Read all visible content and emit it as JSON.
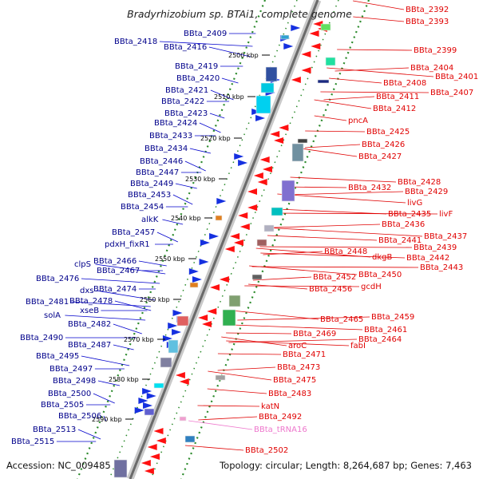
{
  "title": "Bradyrhizobium sp. BTAi1, complete genome",
  "footer": {
    "accession": "Accession: NC_009485",
    "topology": "Topology: circular; Length: 8,264,687 bp; Genes: 7,463"
  },
  "colors": {
    "left_label": "#00008b",
    "right_label": "#e00000",
    "rna_label": "#ee77cc",
    "tick": "#2a8a2a"
  },
  "kbp_ticks": [
    "2500 kbp",
    "2510 kbp",
    "2520 kbp",
    "2530 kbp",
    "2540 kbp",
    "2550 kbp",
    "2560 kbp",
    "2570 kbp",
    "2580 kbp",
    "2590 kbp"
  ],
  "left_labels": [
    "BBta_2409",
    "BBta_2418",
    "BBta_2416",
    "BBta_2419",
    "BBta_2420",
    "BBta_2421",
    "BBta_2422",
    "BBta_2423",
    "BBta_2424",
    "BBta_2433",
    "BBta_2434",
    "BBta_2446",
    "BBta_2447",
    "BBta_2449",
    "BBta_2453",
    "BBta_2454",
    "alkK",
    "BBta_2457",
    "pdxH_fixR1",
    "BBta_2466",
    "clpS",
    "BBta_2467",
    "BBta_2476",
    "dxs",
    "BBta_2474",
    "BBta_2481",
    "BBta_2478",
    "xseB",
    "solA",
    "BBta_2482",
    "BBta_2490",
    "BBta_2487",
    "BBta_2495",
    "BBta_2497",
    "BBta_2498",
    "BBta_2500",
    "BBta_2505",
    "BBta_2506",
    "BBta_2513",
    "BBta_2515"
  ],
  "right_labels": [
    "BBta_2392",
    "BBta_2393",
    "BBta_2399",
    "BBta_2404",
    "BBta_2401",
    "BBta_2408",
    "BBta_2407",
    "BBta_2411",
    "BBta_2412",
    "pncA",
    "BBta_2425",
    "BBta_2426",
    "BBta_2427",
    "BBta_2428",
    "BBta_2432",
    "BBta_2429",
    "livG",
    "BBta_2435",
    "livF",
    "BBta_2436",
    "BBta_2437",
    "BBta_2441",
    "BBta_2439",
    "BBta_2448",
    "dkgB",
    "BBta_2442",
    "BBta_2443",
    "BBta_2452",
    "BBta_2450",
    "BBta_2456",
    "gcdH",
    "BBta_2459",
    "BBta_2465",
    "BBta_2461",
    "BBta_2469",
    "BBta_2464",
    "aroC",
    "fabI",
    "BBta_2471",
    "BBta_2473",
    "BBta_2475",
    "BBta_2483",
    "katN",
    "BBta_2492",
    "BBta_tRNA16",
    "BBta_2502"
  ]
}
